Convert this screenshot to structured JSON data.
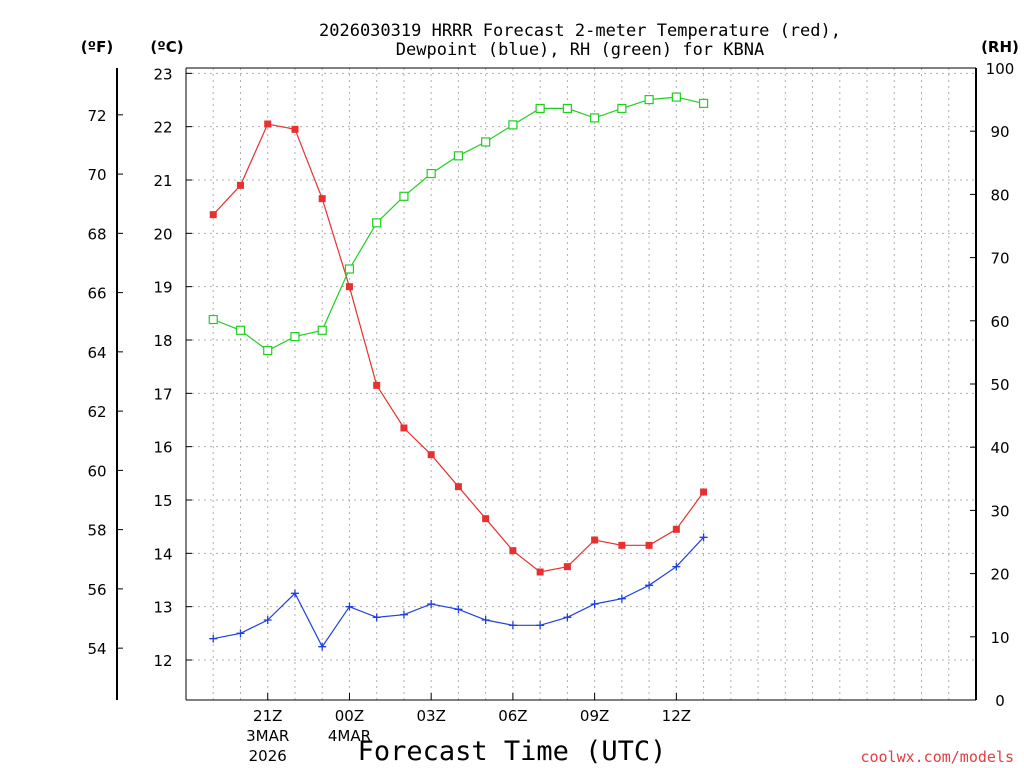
{
  "chart_data": {
    "type": "line",
    "title_line1": "2026030319 HRRR Forecast 2-meter Temperature (red),",
    "title_line2": "Dewpoint (blue), RH (green) for KBNA",
    "xlabel": "Forecast Time (UTC)",
    "credit": "coolwx.com/models",
    "unit_f": "(ºF)",
    "unit_c": "(ºC)",
    "unit_rh": "(RH)",
    "x_range": [
      -3,
      26
    ],
    "c_range": [
      11.25,
      23.1
    ],
    "rh_range": [
      0,
      100
    ],
    "f_ticks": [
      "54",
      "56",
      "58",
      "60",
      "62",
      "64",
      "66",
      "68",
      "70",
      "72"
    ],
    "c_ticks": [
      "12",
      "13",
      "14",
      "15",
      "16",
      "17",
      "18",
      "19",
      "20",
      "21",
      "22",
      "23"
    ],
    "rh_ticks": [
      "0",
      "10",
      "20",
      "30",
      "40",
      "50",
      "60",
      "70",
      "80",
      "90",
      "100"
    ],
    "x_ticks": [
      {
        "x": 0,
        "label": "21Z",
        "sub1": "3MAR",
        "sub2": "2026"
      },
      {
        "x": 3,
        "label": "00Z",
        "sub1": "4MAR",
        "sub2": ""
      },
      {
        "x": 6,
        "label": "03Z",
        "sub1": "",
        "sub2": ""
      },
      {
        "x": 9,
        "label": "06Z",
        "sub1": "",
        "sub2": ""
      },
      {
        "x": 12,
        "label": "09Z",
        "sub1": "",
        "sub2": ""
      },
      {
        "x": 15,
        "label": "12Z",
        "sub1": "",
        "sub2": ""
      }
    ],
    "series": [
      {
        "name": "Temperature (red)",
        "axis": "c",
        "color": "#e83030",
        "marker": "filled-square",
        "x": [
          -2,
          -1,
          0,
          1,
          2,
          3,
          4,
          5,
          6,
          7,
          8,
          9,
          10,
          11,
          12,
          13,
          14,
          15,
          16
        ],
        "values": [
          20.35,
          20.9,
          22.05,
          21.95,
          20.65,
          19.0,
          17.15,
          16.35,
          15.85,
          15.25,
          14.65,
          14.05,
          13.65,
          13.75,
          14.25,
          14.15,
          14.15,
          14.45,
          15.15
        ]
      },
      {
        "name": "Dewpoint (blue)",
        "axis": "c",
        "color": "#2040e0",
        "marker": "plus",
        "x": [
          -2,
          -1,
          0,
          1,
          2,
          3,
          4,
          5,
          6,
          7,
          8,
          9,
          10,
          11,
          12,
          13,
          14,
          15,
          16
        ],
        "values": [
          12.4,
          12.5,
          12.75,
          13.25,
          12.25,
          13.0,
          12.8,
          12.85,
          13.05,
          12.95,
          12.75,
          12.65,
          12.65,
          12.8,
          13.05,
          13.15,
          13.4,
          13.75,
          14.3
        ]
      },
      {
        "name": "RH (green)",
        "axis": "rh",
        "color": "#20d020",
        "marker": "open-square",
        "x": [
          -2,
          -1,
          0,
          1,
          2,
          3,
          4,
          5,
          6,
          7,
          8,
          9,
          10,
          11,
          12,
          13,
          14,
          15,
          16
        ],
        "values": [
          60.2,
          58.5,
          55.3,
          57.5,
          58.5,
          68.2,
          75.5,
          79.7,
          83.3,
          86.1,
          88.3,
          91.0,
          93.6,
          93.6,
          92.1,
          93.6,
          95.0,
          95.4,
          94.4
        ]
      }
    ]
  }
}
